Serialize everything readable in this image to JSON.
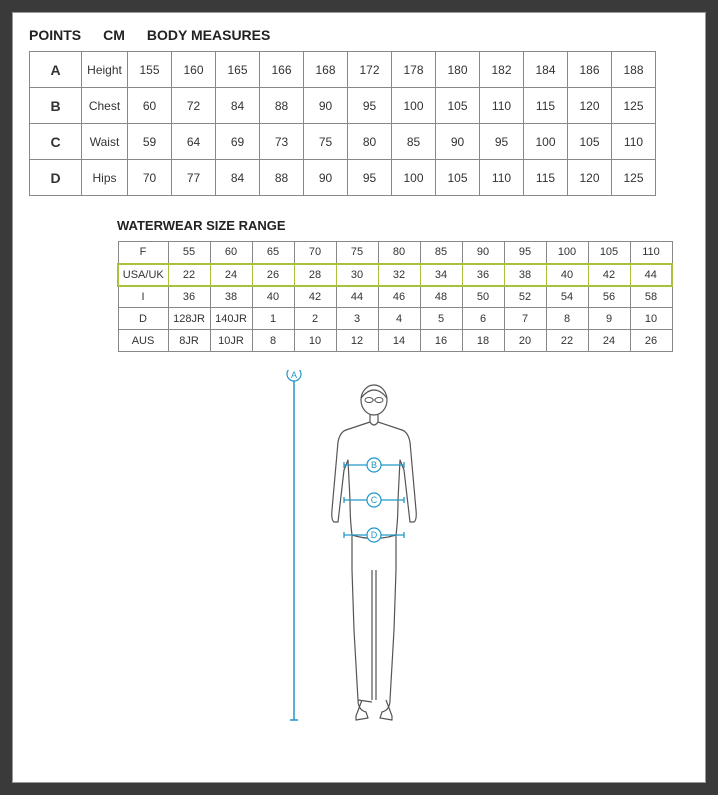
{
  "header": {
    "points": "POINTS",
    "cm": "CM",
    "body_measures": "BODY MEASURES"
  },
  "body_measures": {
    "rows": [
      {
        "point": "A",
        "label": "Height",
        "vals": [
          "155",
          "160",
          "165",
          "166",
          "168",
          "172",
          "178",
          "180",
          "182",
          "184",
          "186",
          "188"
        ]
      },
      {
        "point": "B",
        "label": "Chest",
        "vals": [
          "60",
          "72",
          "84",
          "88",
          "90",
          "95",
          "100",
          "105",
          "110",
          "115",
          "120",
          "125"
        ]
      },
      {
        "point": "C",
        "label": "Waist",
        "vals": [
          "59",
          "64",
          "69",
          "73",
          "75",
          "80",
          "85",
          "90",
          "95",
          "100",
          "105",
          "110"
        ]
      },
      {
        "point": "D",
        "label": "Hips",
        "vals": [
          "70",
          "77",
          "84",
          "88",
          "90",
          "95",
          "100",
          "105",
          "110",
          "115",
          "120",
          "125"
        ]
      }
    ]
  },
  "waterwear": {
    "title": "WATERWEAR SIZE RANGE",
    "rows": [
      {
        "region": "F",
        "vals": [
          "55",
          "60",
          "65",
          "70",
          "75",
          "80",
          "85",
          "90",
          "95",
          "100",
          "105",
          "110"
        ],
        "highlight": false
      },
      {
        "region": "USA/UK",
        "vals": [
          "22",
          "24",
          "26",
          "28",
          "30",
          "32",
          "34",
          "36",
          "38",
          "40",
          "42",
          "44"
        ],
        "highlight": true
      },
      {
        "region": "I",
        "vals": [
          "36",
          "38",
          "40",
          "42",
          "44",
          "46",
          "48",
          "50",
          "52",
          "54",
          "56",
          "58"
        ],
        "highlight": false
      },
      {
        "region": "D",
        "vals": [
          "128JR",
          "140JR",
          "1",
          "2",
          "3",
          "4",
          "5",
          "6",
          "7",
          "8",
          "9",
          "10"
        ],
        "highlight": false
      },
      {
        "region": "AUS",
        "vals": [
          "8JR",
          "10JR",
          "8",
          "10",
          "12",
          "14",
          "16",
          "18",
          "20",
          "22",
          "24",
          "26"
        ],
        "highlight": false
      }
    ]
  },
  "diagram": {
    "labels": {
      "A": "A",
      "B": "B",
      "C": "C",
      "D": "D"
    },
    "line_color": "#2196c9",
    "body_stroke": "#555555",
    "body_fill": "#ffffff",
    "fig_width": 230,
    "fig_height": 360
  },
  "colors": {
    "page_bg": "#ffffff",
    "outer_bg": "#3a3a3a",
    "border": "#888888",
    "text": "#333333",
    "highlight_border": "#a7c23c"
  }
}
